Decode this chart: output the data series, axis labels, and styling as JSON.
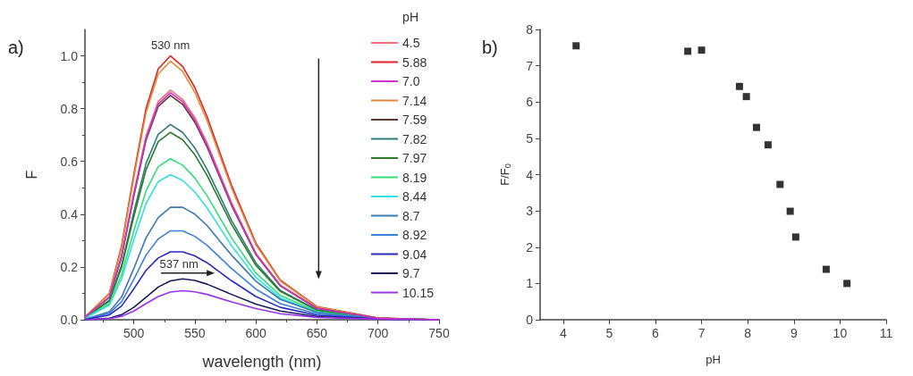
{
  "chart_data": [
    {
      "type": "line",
      "title": "a)",
      "xlabel": "wavelength (nm)",
      "ylabel": "F",
      "legend_title": "pH",
      "legend": "top right",
      "grid": false,
      "marker": "none",
      "line_style": "solid",
      "x": [
        460,
        480,
        490,
        500,
        510,
        520,
        530,
        540,
        550,
        560,
        580,
        600,
        620,
        650,
        700,
        750
      ],
      "xlim": [
        460,
        750
      ],
      "xticks": [
        500,
        550,
        600,
        650,
        700,
        750
      ],
      "ylim": [
        0,
        1.1
      ],
      "yticks": [
        {
          "value": 0,
          "label": "0.0"
        },
        0.2,
        0.4,
        0.6,
        0.8,
        {
          "value": 1,
          "label": "1.0"
        }
      ],
      "annotations": [
        {
          "text": "530 nm",
          "x": 530,
          "y": 1.0
        },
        {
          "text": "537 nm",
          "x": 537,
          "y": 0.17
        }
      ],
      "series": [
        {
          "name": "4.5",
          "color": "#f07070",
          "values": [
            0.009,
            0.087,
            0.244,
            0.479,
            0.696,
            0.827,
            0.87,
            0.835,
            0.766,
            0.67,
            0.444,
            0.252,
            0.131,
            0.044,
            0.006,
            0
          ]
        },
        {
          "name": "5.88",
          "color": "#e02020",
          "values": [
            0.01,
            0.1,
            0.28,
            0.55,
            0.8,
            0.95,
            1.0,
            0.96,
            0.88,
            0.77,
            0.51,
            0.29,
            0.15,
            0.05,
            0.007,
            0
          ]
        },
        {
          "name": "7.0",
          "color": "#cc33cc",
          "values": [
            0.009,
            0.086,
            0.241,
            0.473,
            0.688,
            0.817,
            0.86,
            0.826,
            0.757,
            0.662,
            0.439,
            0.249,
            0.129,
            0.043,
            0.006,
            0
          ]
        },
        {
          "name": "7.14",
          "color": "#e08a3a",
          "values": [
            0.01,
            0.098,
            0.274,
            0.539,
            0.784,
            0.931,
            0.98,
            0.941,
            0.862,
            0.755,
            0.5,
            0.284,
            0.147,
            0.049,
            0.007,
            0
          ]
        },
        {
          "name": "7.59",
          "color": "#5a3a2a",
          "values": [
            0.009,
            0.085,
            0.238,
            0.468,
            0.68,
            0.808,
            0.85,
            0.816,
            0.748,
            0.655,
            0.434,
            0.247,
            0.128,
            0.043,
            0.006,
            0
          ]
        },
        {
          "name": "7.82",
          "color": "#2e7a7a",
          "values": [
            0.007,
            0.074,
            0.207,
            0.407,
            0.592,
            0.703,
            0.74,
            0.71,
            0.651,
            0.57,
            0.377,
            0.215,
            0.111,
            0.037,
            0.005,
            0
          ]
        },
        {
          "name": "7.97",
          "color": "#2a7a2a",
          "values": [
            0.007,
            0.071,
            0.199,
            0.391,
            0.568,
            0.675,
            0.71,
            0.682,
            0.625,
            0.547,
            0.362,
            0.206,
            0.107,
            0.036,
            0.005,
            0
          ]
        },
        {
          "name": "8.19",
          "color": "#33dd77",
          "values": [
            0.006,
            0.061,
            0.171,
            0.336,
            0.488,
            0.58,
            0.61,
            0.586,
            0.537,
            0.47,
            0.311,
            0.177,
            0.092,
            0.031,
            0.004,
            0
          ]
        },
        {
          "name": "8.44",
          "color": "#33e0e0",
          "values": [
            0.006,
            0.055,
            0.154,
            0.303,
            0.44,
            0.523,
            0.55,
            0.528,
            0.484,
            0.424,
            0.281,
            0.16,
            0.083,
            0.028,
            0.004,
            0
          ]
        },
        {
          "name": "8.7",
          "color": "#3a7ab0",
          "values": [
            0.002,
            0.03,
            0.086,
            0.194,
            0.31,
            0.387,
            0.426,
            0.426,
            0.4,
            0.357,
            0.245,
            0.146,
            0.077,
            0.028,
            0.004,
            0
          ]
        },
        {
          "name": "8.92",
          "color": "#3a80e0",
          "values": [
            0.002,
            0.024,
            0.068,
            0.153,
            0.245,
            0.306,
            0.337,
            0.337,
            0.316,
            0.282,
            0.194,
            0.116,
            0.061,
            0.022,
            0.003,
            0
          ]
        },
        {
          "name": "9.04",
          "color": "#2a2ac0",
          "values": [
            0.001,
            0.018,
            0.052,
            0.117,
            0.187,
            0.234,
            0.257,
            0.257,
            0.242,
            0.216,
            0.148,
            0.088,
            0.047,
            0.017,
            0.003,
            0
          ]
        },
        {
          "name": "9.7",
          "color": "#1a1a5a",
          "values": [
            0,
            0.006,
            0.019,
            0.047,
            0.085,
            0.124,
            0.147,
            0.155,
            0.149,
            0.135,
            0.096,
            0.059,
            0.033,
            0.012,
            0.002,
            0
          ]
        },
        {
          "name": "10.15",
          "color": "#9933ee",
          "values": [
            0,
            0.004,
            0.013,
            0.033,
            0.061,
            0.088,
            0.105,
            0.11,
            0.106,
            0.096,
            0.068,
            0.042,
            0.023,
            0.009,
            0.002,
            0
          ]
        }
      ]
    },
    {
      "type": "scatter",
      "title": "b)",
      "xlabel": "pH",
      "ylabel": "F/F$_{0}$",
      "legend": false,
      "grid": false,
      "marker": "square",
      "xlim": [
        3.5,
        11
      ],
      "xticks": [
        4,
        5,
        6,
        7,
        8,
        9,
        10,
        11
      ],
      "ylim": [
        0,
        8
      ],
      "yticks": [
        0,
        1,
        2,
        3,
        4,
        5,
        6,
        7,
        8
      ],
      "series": [
        {
          "color": "#000000",
          "x": [
            4.28,
            6.7,
            7.0,
            7.82,
            7.97,
            8.19,
            8.44,
            8.7,
            8.92,
            9.04,
            9.7,
            10.15
          ],
          "values": [
            7.55,
            7.4,
            7.43,
            6.43,
            6.15,
            5.3,
            4.82,
            3.73,
            2.99,
            2.28,
            1.39,
            1.0
          ]
        }
      ]
    }
  ]
}
